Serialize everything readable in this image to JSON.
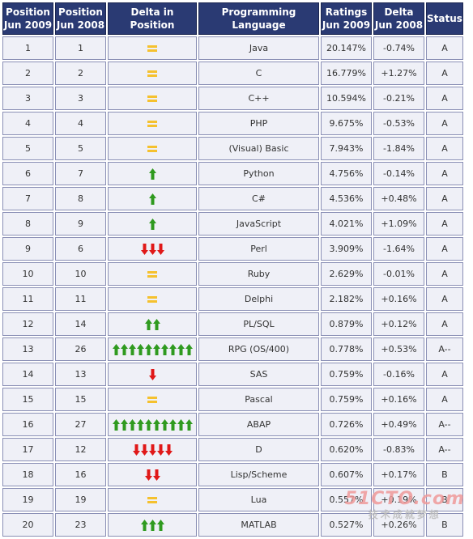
{
  "headers": {
    "pos_now": "Position\nJun 2009",
    "pos_prev": "Position\nJun 2008",
    "delta": "Delta in Position",
    "language": "Programming Language",
    "rating": "Ratings\nJun 2009",
    "change": "Delta\nJun 2008",
    "status": "Status"
  },
  "colors": {
    "header_bg": "#2a3a73",
    "cell_bg": "#eff0f7",
    "up_arrow": "#2f9a1f",
    "down_arrow": "#e01818",
    "equal_sign": "#f5c12e",
    "language_text": "#2c2a8f"
  },
  "icons": {
    "up": "green-up-arrow-icon",
    "down": "red-down-arrow-icon",
    "same": "yellow-equal-sign-icon"
  },
  "rows": [
    {
      "pos_now": "1",
      "pos_prev": "1",
      "delta": "same",
      "delta_count": 1,
      "language": "Java",
      "rating": "20.147%",
      "change": "-0.74%",
      "status": "A"
    },
    {
      "pos_now": "2",
      "pos_prev": "2",
      "delta": "same",
      "delta_count": 1,
      "language": "C",
      "rating": "16.779%",
      "change": "+1.27%",
      "status": "A"
    },
    {
      "pos_now": "3",
      "pos_prev": "3",
      "delta": "same",
      "delta_count": 1,
      "language": "C++",
      "rating": "10.594%",
      "change": "-0.21%",
      "status": "A"
    },
    {
      "pos_now": "4",
      "pos_prev": "4",
      "delta": "same",
      "delta_count": 1,
      "language": "PHP",
      "rating": "9.675%",
      "change": "-0.53%",
      "status": "A"
    },
    {
      "pos_now": "5",
      "pos_prev": "5",
      "delta": "same",
      "delta_count": 1,
      "language": "(Visual) Basic",
      "rating": "7.943%",
      "change": "-1.84%",
      "status": "A"
    },
    {
      "pos_now": "6",
      "pos_prev": "7",
      "delta": "up",
      "delta_count": 1,
      "language": "Python",
      "rating": "4.756%",
      "change": "-0.14%",
      "status": "A"
    },
    {
      "pos_now": "7",
      "pos_prev": "8",
      "delta": "up",
      "delta_count": 1,
      "language": "C#",
      "rating": "4.536%",
      "change": "+0.48%",
      "status": "A"
    },
    {
      "pos_now": "8",
      "pos_prev": "9",
      "delta": "up",
      "delta_count": 1,
      "language": "JavaScript",
      "rating": "4.021%",
      "change": "+1.09%",
      "status": "A"
    },
    {
      "pos_now": "9",
      "pos_prev": "6",
      "delta": "down",
      "delta_count": 3,
      "language": "Perl",
      "rating": "3.909%",
      "change": "-1.64%",
      "status": "A"
    },
    {
      "pos_now": "10",
      "pos_prev": "10",
      "delta": "same",
      "delta_count": 1,
      "language": "Ruby",
      "rating": "2.629%",
      "change": "-0.01%",
      "status": "A"
    },
    {
      "pos_now": "11",
      "pos_prev": "11",
      "delta": "same",
      "delta_count": 1,
      "language": "Delphi",
      "rating": "2.182%",
      "change": "+0.16%",
      "status": "A"
    },
    {
      "pos_now": "12",
      "pos_prev": "14",
      "delta": "up",
      "delta_count": 2,
      "language": "PL/SQL",
      "rating": "0.879%",
      "change": "+0.12%",
      "status": "A"
    },
    {
      "pos_now": "13",
      "pos_prev": "26",
      "delta": "up",
      "delta_count": 10,
      "language": "RPG (OS/400)",
      "rating": "0.778%",
      "change": "+0.53%",
      "status": "A--"
    },
    {
      "pos_now": "14",
      "pos_prev": "13",
      "delta": "down",
      "delta_count": 1,
      "language": "SAS",
      "rating": "0.759%",
      "change": "-0.16%",
      "status": "A"
    },
    {
      "pos_now": "15",
      "pos_prev": "15",
      "delta": "same",
      "delta_count": 1,
      "language": "Pascal",
      "rating": "0.759%",
      "change": "+0.16%",
      "status": "A"
    },
    {
      "pos_now": "16",
      "pos_prev": "27",
      "delta": "up",
      "delta_count": 10,
      "language": "ABAP",
      "rating": "0.726%",
      "change": "+0.49%",
      "status": "A--"
    },
    {
      "pos_now": "17",
      "pos_prev": "12",
      "delta": "down",
      "delta_count": 5,
      "language": "D",
      "rating": "0.620%",
      "change": "-0.83%",
      "status": "A--"
    },
    {
      "pos_now": "18",
      "pos_prev": "16",
      "delta": "down",
      "delta_count": 2,
      "language": "Lisp/Scheme",
      "rating": "0.607%",
      "change": "+0.17%",
      "status": "B"
    },
    {
      "pos_now": "19",
      "pos_prev": "19",
      "delta": "same",
      "delta_count": 1,
      "language": "Lua",
      "rating": "0.557%",
      "change": "+0.19%",
      "status": "B"
    },
    {
      "pos_now": "20",
      "pos_prev": "23",
      "delta": "up",
      "delta_count": 3,
      "language": "MATLAB",
      "rating": "0.527%",
      "change": "+0.26%",
      "status": "B"
    }
  ],
  "watermark": {
    "line1": "51CTO.com",
    "line2": "技术成就梦想"
  }
}
